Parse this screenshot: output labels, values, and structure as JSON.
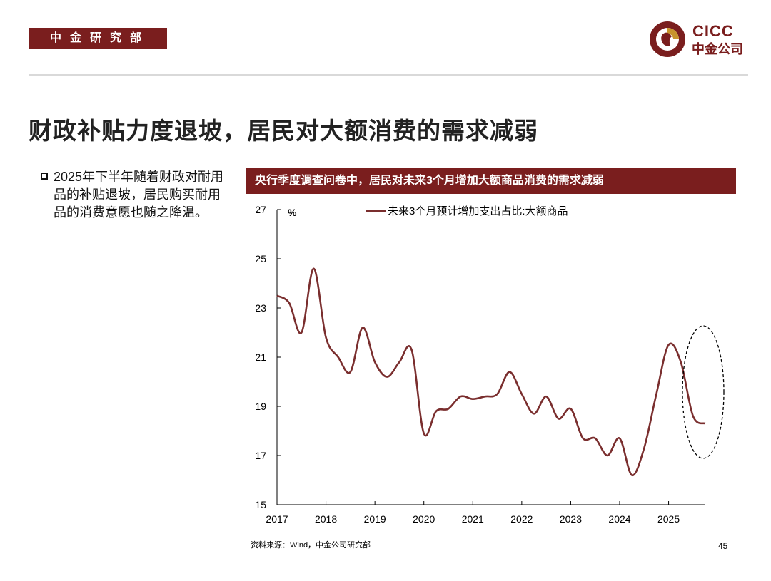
{
  "header": {
    "department": "中金研究部",
    "logo_en": "CICC",
    "logo_cn": "中金公司",
    "brand_color": "#7a1e1e"
  },
  "slide": {
    "title": "财政补贴力度退坡，居民对大额消费的需求减弱",
    "bullet": "2025年下半年随着财政对耐用品的补贴退坡，居民购买耐用品的消费意愿也随之降温。",
    "chart_title": "央行季度调查问卷中，居民对未来3个月增加大额商品消费的需求减弱",
    "source": "资料来源：Wind，中金公司研究部",
    "page_number": "45"
  },
  "chart_data": {
    "type": "line",
    "title": "央行季度调查问卷中，居民对未来3个月增加大额商品消费的需求减弱",
    "ylabel": "%",
    "xlabel": "",
    "ylim": [
      15,
      27
    ],
    "yticks": [
      15,
      17,
      19,
      21,
      23,
      25,
      27
    ],
    "xlim": [
      2017,
      2025.75
    ],
    "xticks": [
      2017,
      2018,
      2019,
      2020,
      2021,
      2022,
      2023,
      2024,
      2025
    ],
    "legend_position": "top",
    "line_color": "#7a2e2e",
    "series": [
      {
        "name": "未来3个月预计增加支出占比:大额商品",
        "x": [
          2017.0,
          2017.25,
          2017.5,
          2017.75,
          2018.0,
          2018.25,
          2018.5,
          2018.75,
          2019.0,
          2019.25,
          2019.5,
          2019.75,
          2020.0,
          2020.25,
          2020.5,
          2020.75,
          2021.0,
          2021.25,
          2021.5,
          2021.75,
          2022.0,
          2022.25,
          2022.5,
          2022.75,
          2023.0,
          2023.25,
          2023.5,
          2023.75,
          2024.0,
          2024.25,
          2024.5,
          2024.75,
          2025.0,
          2025.25,
          2025.5,
          2025.75
        ],
        "values": [
          23.5,
          23.2,
          22.0,
          24.6,
          21.8,
          21.0,
          20.4,
          22.2,
          20.8,
          20.2,
          20.8,
          21.3,
          17.9,
          18.8,
          18.9,
          19.4,
          19.3,
          19.4,
          19.5,
          20.4,
          19.5,
          18.7,
          19.4,
          18.5,
          18.9,
          17.7,
          17.7,
          17.0,
          17.7,
          16.2,
          17.3,
          19.5,
          21.5,
          20.8,
          18.6,
          18.3
        ]
      }
    ],
    "annotation": "dashed ellipse around 2025 H2 decline"
  }
}
